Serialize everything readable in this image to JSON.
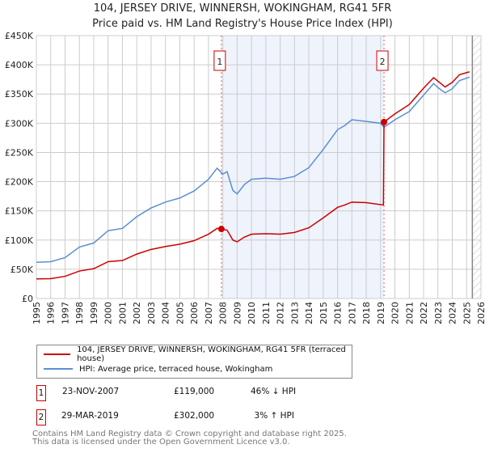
{
  "title": "104, JERSEY DRIVE, WINNERSH, WOKINGHAM, RG41 5FR",
  "subtitle": "Price paid vs. HM Land Registry's House Price Index (HPI)",
  "chart_data": {
    "type": "line",
    "xlim": [
      1995,
      2026
    ],
    "ylim": [
      0,
      450000
    ],
    "yticks": [
      0,
      50000,
      100000,
      150000,
      200000,
      250000,
      300000,
      350000,
      400000,
      450000
    ],
    "ytick_labels": [
      "£0",
      "£50K",
      "£100K",
      "£150K",
      "£200K",
      "£250K",
      "£300K",
      "£350K",
      "£400K",
      "£450K"
    ],
    "xticks": [
      1995,
      1996,
      1997,
      1998,
      1999,
      2000,
      2001,
      2002,
      2003,
      2004,
      2005,
      2006,
      2007,
      2008,
      2009,
      2010,
      2011,
      2012,
      2013,
      2014,
      2015,
      2016,
      2017,
      2018,
      2019,
      2020,
      2021,
      2022,
      2023,
      2024,
      2025,
      2026
    ],
    "series": [
      {
        "name": "104, JERSEY DRIVE, WINNERSH, WOKINGHAM, RG41 5FR (terraced house)",
        "color": "#cc0000",
        "x": [
          1995,
          1996,
          1997,
          1998,
          1999,
          2000,
          2001,
          2002,
          2003,
          2004,
          2005,
          2006,
          2007,
          2007.6,
          2007.9,
          2008.3,
          2008.7,
          2009,
          2009.5,
          2010,
          2011,
          2012,
          2013,
          2014,
          2015,
          2016,
          2016.5,
          2017,
          2018,
          2019.2,
          2019.24,
          2020,
          2021,
          2022,
          2022.7,
          2023,
          2023.5,
          2024,
          2024.5,
          2025.2
        ],
        "y": [
          33500,
          34000,
          38000,
          47000,
          51000,
          63000,
          65000,
          76000,
          84000,
          89000,
          93000,
          99000,
          110000,
          120000,
          119000,
          117000,
          100000,
          97000,
          105000,
          110000,
          111000,
          110000,
          113000,
          121000,
          138000,
          156000,
          160000,
          165000,
          164000,
          160000,
          302000,
          316000,
          332000,
          360000,
          378000,
          372000,
          362000,
          370000,
          383000,
          388000
        ]
      },
      {
        "name": "HPI: Average price, terraced house, Wokingham",
        "color": "#5b8fd4",
        "x": [
          1995,
          1996,
          1997,
          1998,
          1999,
          2000,
          2001,
          2002,
          2003,
          2004,
          2005,
          2006,
          2007,
          2007.6,
          2008,
          2008.3,
          2008.7,
          2009,
          2009.5,
          2010,
          2011,
          2012,
          2013,
          2014,
          2015,
          2016,
          2016.5,
          2017,
          2018,
          2019,
          2019.24,
          2020,
          2021,
          2022,
          2022.7,
          2023,
          2023.5,
          2024,
          2024.5,
          2025.2
        ],
        "y": [
          62000,
          63000,
          70000,
          88000,
          95000,
          116000,
          120000,
          140000,
          155000,
          165000,
          172000,
          184000,
          204000,
          223000,
          213000,
          217000,
          185000,
          179000,
          195000,
          204000,
          206000,
          204000,
          209000,
          224000,
          255000,
          289000,
          296000,
          306000,
          303000,
          300000,
          293000,
          306000,
          320000,
          348000,
          368000,
          361000,
          352000,
          359000,
          373000,
          379000
        ]
      }
    ],
    "sales": [
      {
        "label": "1",
        "x": 2007.9,
        "y": 119000
      },
      {
        "label": "2",
        "x": 2019.24,
        "y": 302000
      }
    ],
    "forecast_from": 2025.4
  },
  "legend": {
    "red": "104, JERSEY DRIVE, WINNERSH, WOKINGHAM, RG41 5FR (terraced house)",
    "blue": "HPI: Average price, terraced house, Wokingham"
  },
  "transactions": [
    {
      "n": "1",
      "date": "23-NOV-2007",
      "price": "£119,000",
      "hpi": "46% ↓ HPI"
    },
    {
      "n": "2",
      "date": "29-MAR-2019",
      "price": "£302,000",
      "hpi": "3% ↑ HPI"
    }
  ],
  "footer": [
    "Contains HM Land Registry data © Crown copyright and database right 2025.",
    "This data is licensed under the Open Government Licence v3.0."
  ]
}
